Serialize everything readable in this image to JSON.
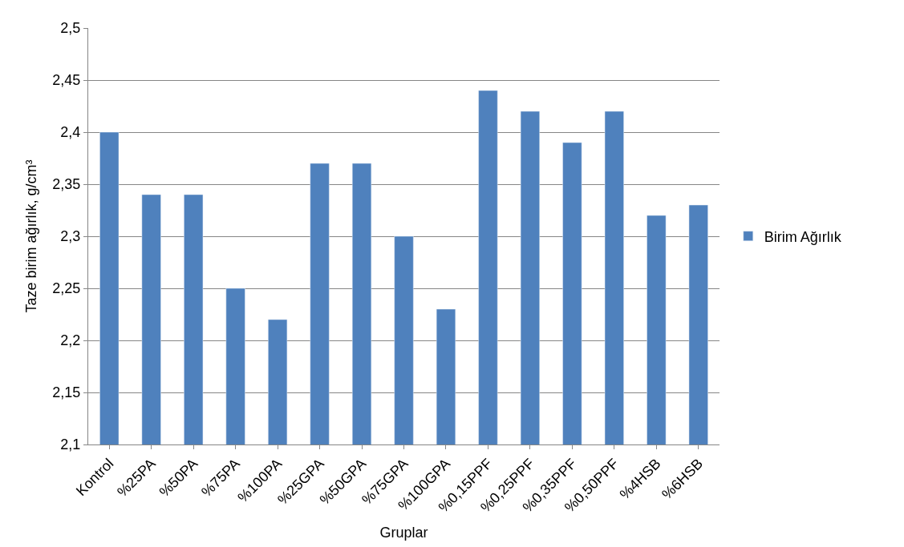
{
  "chart_data": {
    "type": "bar",
    "xlabel": "Gruplar",
    "ylabel": "Taze birim ağırlık, g/cm³",
    "categories": [
      "Kontrol",
      "%25PA",
      "%50PA",
      "%75PA",
      "%100PA",
      "%25GPA",
      "%50GPA",
      "%75GPA",
      "%100GPA",
      "%0,15PPF",
      "%0,25PPF",
      "%0,35PPF",
      "%0,50PPF",
      "%4HSB",
      "%6HSB"
    ],
    "series": [
      {
        "name": "Birim Ağırlık",
        "color": "#4f81bd",
        "values": [
          2.4,
          2.34,
          2.34,
          2.25,
          2.22,
          2.37,
          2.37,
          2.3,
          2.23,
          2.44,
          2.42,
          2.39,
          2.42,
          2.32,
          2.33
        ]
      }
    ],
    "ylim": [
      2.1,
      2.5
    ],
    "yticks": [
      {
        "value": 2.1,
        "label": "2,1"
      },
      {
        "value": 2.15,
        "label": "2,15"
      },
      {
        "value": 2.2,
        "label": "2,2"
      },
      {
        "value": 2.25,
        "label": "2,25"
      },
      {
        "value": 2.3,
        "label": "2,3"
      },
      {
        "value": 2.35,
        "label": "2,35"
      },
      {
        "value": 2.4,
        "label": "2,4"
      },
      {
        "value": 2.45,
        "label": "2,45"
      },
      {
        "value": 2.5,
        "label": "2,5"
      }
    ],
    "grid": "y",
    "legend": "right"
  }
}
